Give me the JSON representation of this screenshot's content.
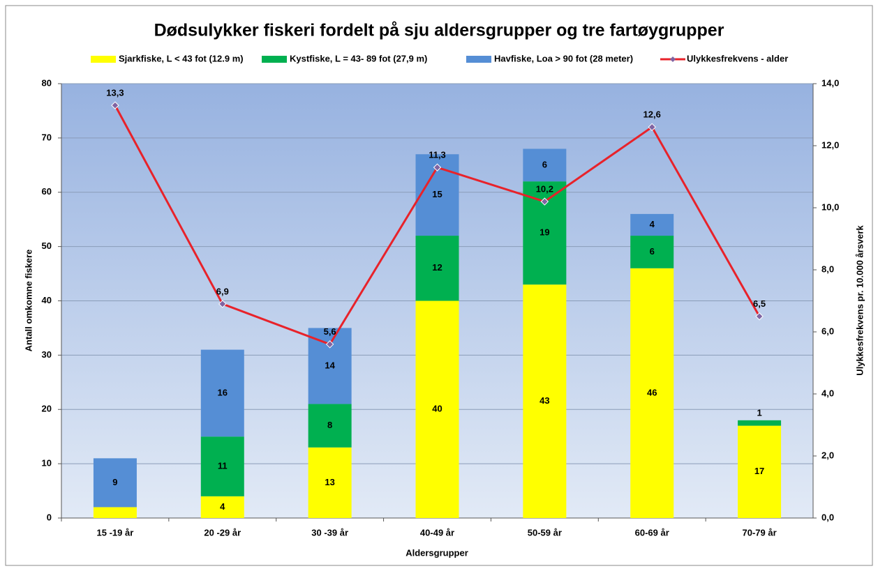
{
  "chart_data": {
    "type": "bar",
    "title": "Dødsulykker fiskeri fordelt på sju aldersgrupper og tre fartøygrupper",
    "x_label": "Aldersgrupper",
    "y_label": "Antall omkomne fiskere",
    "y2_label": "Ulykkesfrekvens pr. 10.000 årsverk",
    "categories": [
      "15 -19 år",
      "20 -29 år",
      "30 -39 år",
      "40-49 år",
      "50-59 år",
      "60-69 år",
      "70-79 år"
    ],
    "ylim": [
      0,
      80
    ],
    "yticks": [
      0,
      10,
      20,
      30,
      40,
      50,
      60,
      70,
      80
    ],
    "y2lim": [
      0,
      14
    ],
    "y2ticks": [
      {
        "value": 0,
        "label": "0,0"
      },
      {
        "value": 2,
        "label": "2,0"
      },
      {
        "value": 4,
        "label": "4,0"
      },
      {
        "value": 6,
        "label": "6,0"
      },
      {
        "value": 8,
        "label": "8,0"
      },
      {
        "value": 10,
        "label": "10,0"
      },
      {
        "value": 12,
        "label": "12,0"
      },
      {
        "value": 14,
        "label": "14,0"
      }
    ],
    "grid": true,
    "stacked": true,
    "legend": "top",
    "series": [
      {
        "name": "Sjarkfiske, L < 43 fot (12.9 m)",
        "color": "#ffff00",
        "values": [
          2,
          4,
          13,
          40,
          43,
          46,
          17
        ]
      },
      {
        "name": "Kystfiske, L = 43- 89 fot (27,9 m)",
        "color": "#00b050",
        "values": [
          null,
          11,
          8,
          12,
          19,
          6,
          1
        ]
      },
      {
        "name": "Havfiske, Loa > 90 fot (28 meter)",
        "color": "#558ed5",
        "values": [
          9,
          16,
          14,
          15,
          6,
          4,
          null
        ]
      },
      {
        "name": "Ulykkesfrekvens - alder",
        "color": "#e8222a",
        "marker_color": "#8064a2",
        "type": "line",
        "axis": "y2",
        "values": [
          13.3,
          6.9,
          5.6,
          11.3,
          10.2,
          12.6,
          6.5
        ],
        "value_labels": [
          "13,3",
          "6,9",
          "5,6",
          "11,3",
          "10,2",
          "12,6",
          "6,5"
        ]
      }
    ]
  }
}
